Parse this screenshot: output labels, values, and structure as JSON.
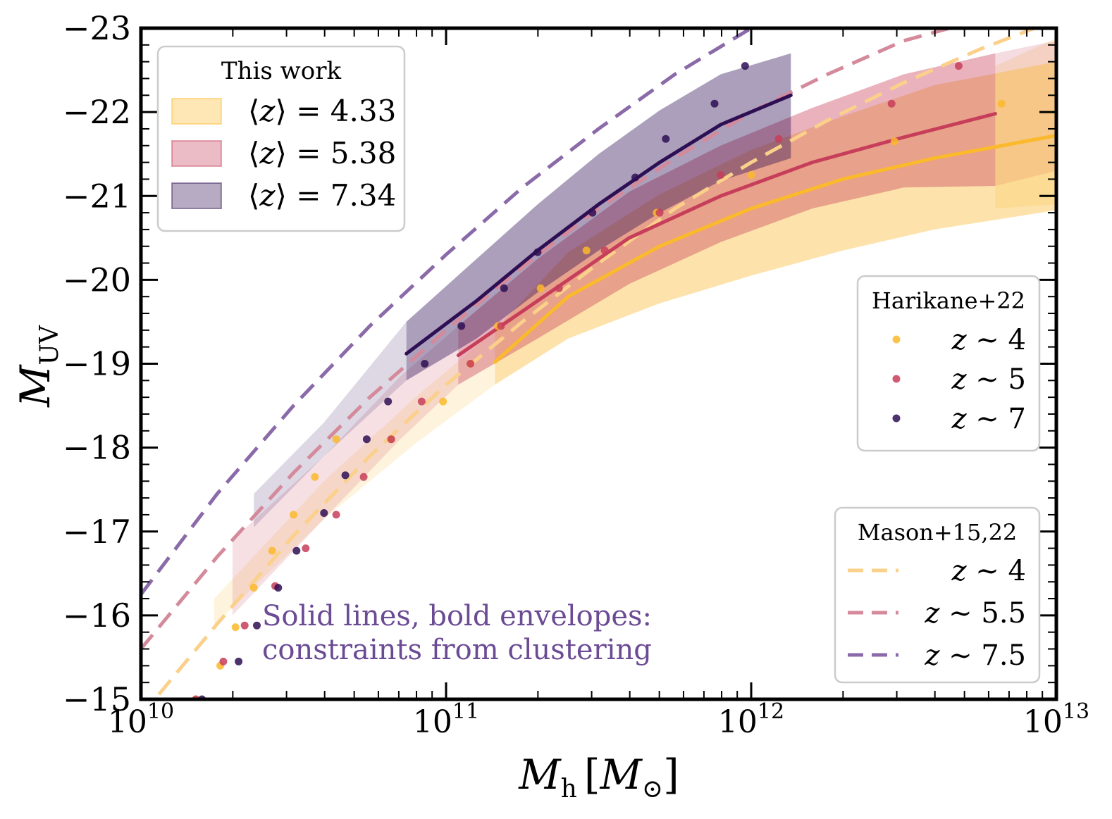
{
  "chart_data": {
    "type": "line",
    "xscale": "log",
    "xlim": [
      10,
      13
    ],
    "ylim": [
      -15,
      -23
    ],
    "xlabel_main": "M",
    "xlabel_sub": "h",
    "xlabel_unit_main": "M",
    "xlabel_unit_sub": "⊙",
    "ylabel_main": "M",
    "ylabel_sub": "UV",
    "x_ticks": [
      {
        "exp": 10,
        "base": "10",
        "sup": "10"
      },
      {
        "exp": 11,
        "base": "10",
        "sup": "11"
      },
      {
        "exp": 12,
        "base": "10",
        "sup": "12"
      },
      {
        "exp": 13,
        "base": "10",
        "sup": "13"
      }
    ],
    "y_ticks": [
      {
        "value": -15,
        "label": "−15"
      },
      {
        "value": -16,
        "label": "−16"
      },
      {
        "value": -17,
        "label": "−17"
      },
      {
        "value": -18,
        "label": "−18"
      },
      {
        "value": -19,
        "label": "−19"
      },
      {
        "value": -20,
        "label": "−20"
      },
      {
        "value": -21,
        "label": "−21"
      },
      {
        "value": -22,
        "label": "−22"
      },
      {
        "value": -23,
        "label": "−23"
      }
    ],
    "colors": {
      "z4": "#fbb92c",
      "z5": "#c73e5a",
      "z7": "#2e0f54"
    },
    "this_work": [
      {
        "key": "z4",
        "color": "#fbb92c",
        "label_z": "z",
        "label_value": "= 4.33",
        "line": [
          [
            11.16,
            -19.02
          ],
          [
            11.4,
            -19.8
          ],
          [
            11.7,
            -20.4
          ],
          [
            12.0,
            -20.85
          ],
          [
            12.3,
            -21.2
          ],
          [
            12.6,
            -21.45
          ],
          [
            13.0,
            -21.72
          ]
        ],
        "bold_lower": [
          [
            11.16,
            -18.75
          ],
          [
            11.4,
            -19.3
          ],
          [
            11.7,
            -19.72
          ],
          [
            12.0,
            -20.05
          ],
          [
            12.3,
            -20.35
          ],
          [
            12.6,
            -20.6
          ],
          [
            13.0,
            -20.83
          ]
        ],
        "bold_upper": [
          [
            11.16,
            -19.4
          ],
          [
            11.4,
            -20.33
          ],
          [
            11.7,
            -21.02
          ],
          [
            12.0,
            -21.55
          ],
          [
            12.3,
            -21.95
          ],
          [
            12.6,
            -22.32
          ],
          [
            13.0,
            -22.6
          ]
        ],
        "faint_lower": [
          [
            10.24,
            -15.88
          ],
          [
            10.6,
            -17.15
          ],
          [
            10.9,
            -18.05
          ],
          [
            11.16,
            -18.75
          ]
        ],
        "faint_upper": [
          [
            10.24,
            -16.2
          ],
          [
            10.6,
            -17.6
          ],
          [
            10.9,
            -18.6
          ],
          [
            11.16,
            -19.4
          ]
        ],
        "wide_lower": [
          [
            12.8,
            -20.85
          ],
          [
            13.0,
            -20.9
          ]
        ],
        "wide_upper": [
          [
            12.8,
            -22.55
          ],
          [
            13.0,
            -22.88
          ]
        ]
      },
      {
        "key": "z5",
        "color": "#c73e5a",
        "label_z": "z",
        "label_value": "= 5.38",
        "line": [
          [
            11.04,
            -19.1
          ],
          [
            11.3,
            -19.75
          ],
          [
            11.6,
            -20.5
          ],
          [
            11.9,
            -21.0
          ],
          [
            12.2,
            -21.4
          ],
          [
            12.5,
            -21.7
          ],
          [
            12.8,
            -21.98
          ]
        ],
        "bold_lower": [
          [
            11.04,
            -18.75
          ],
          [
            11.3,
            -19.3
          ],
          [
            11.6,
            -19.95
          ],
          [
            11.9,
            -20.45
          ],
          [
            12.2,
            -20.85
          ],
          [
            12.5,
            -21.1
          ],
          [
            12.8,
            -21.12
          ]
        ],
        "bold_upper": [
          [
            11.04,
            -19.45
          ],
          [
            11.3,
            -20.25
          ],
          [
            11.6,
            -21.05
          ],
          [
            11.9,
            -21.6
          ],
          [
            12.2,
            -22.05
          ],
          [
            12.5,
            -22.45
          ],
          [
            12.8,
            -22.7
          ]
        ],
        "faint_lower": [
          [
            10.3,
            -16.0
          ],
          [
            10.6,
            -17.15
          ],
          [
            10.85,
            -18.1
          ],
          [
            11.04,
            -18.75
          ]
        ],
        "faint_upper": [
          [
            10.3,
            -16.9
          ],
          [
            10.6,
            -17.9
          ],
          [
            10.85,
            -18.85
          ],
          [
            11.04,
            -19.45
          ]
        ],
        "wide_lower": [
          [
            12.8,
            -21.12
          ],
          [
            13.0,
            -21.3
          ]
        ],
        "wide_upper": [
          [
            12.8,
            -22.7
          ],
          [
            13.0,
            -22.85
          ]
        ]
      },
      {
        "key": "z7",
        "color": "#2e0f54",
        "label_z": "z",
        "label_value": "= 7.34",
        "line": [
          [
            10.87,
            -19.12
          ],
          [
            11.1,
            -19.75
          ],
          [
            11.3,
            -20.35
          ],
          [
            11.5,
            -20.9
          ],
          [
            11.7,
            -21.4
          ],
          [
            11.9,
            -21.85
          ],
          [
            12.13,
            -22.2
          ]
        ],
        "bold_lower": [
          [
            10.87,
            -18.8
          ],
          [
            11.1,
            -19.3
          ],
          [
            11.3,
            -19.85
          ],
          [
            11.5,
            -20.35
          ],
          [
            11.7,
            -20.8
          ],
          [
            11.9,
            -21.18
          ],
          [
            12.13,
            -21.45
          ]
        ],
        "bold_upper": [
          [
            10.87,
            -19.5
          ],
          [
            11.1,
            -20.25
          ],
          [
            11.3,
            -20.9
          ],
          [
            11.5,
            -21.5
          ],
          [
            11.7,
            -22.02
          ],
          [
            11.9,
            -22.45
          ],
          [
            12.13,
            -22.7
          ]
        ],
        "faint_lower": [
          [
            10.37,
            -17.05
          ],
          [
            10.6,
            -17.9
          ],
          [
            10.87,
            -18.8
          ]
        ],
        "faint_upper": [
          [
            10.37,
            -17.45
          ],
          [
            10.6,
            -18.3
          ],
          [
            10.87,
            -19.5
          ]
        ],
        "wide_lower": [],
        "wide_upper": []
      }
    ],
    "mason": [
      {
        "key": "z4",
        "color": "#fbd08a",
        "label_z": "z",
        "label_value": "∼ 4",
        "points": [
          [
            10.0,
            -14.8
          ],
          [
            10.25,
            -15.9
          ],
          [
            10.5,
            -16.95
          ],
          [
            10.75,
            -17.9
          ],
          [
            11.0,
            -18.75
          ],
          [
            11.25,
            -19.5
          ],
          [
            11.5,
            -20.2
          ],
          [
            11.75,
            -20.85
          ],
          [
            12.0,
            -21.4
          ],
          [
            12.25,
            -21.9
          ],
          [
            12.5,
            -22.35
          ],
          [
            12.75,
            -22.75
          ],
          [
            13.0,
            -23.1
          ]
        ]
      },
      {
        "key": "z5",
        "color": "#d48a9b",
        "label_z": "z",
        "label_value": "∼ 5.5",
        "points": [
          [
            10.0,
            -15.6
          ],
          [
            10.25,
            -16.7
          ],
          [
            10.5,
            -17.7
          ],
          [
            10.75,
            -18.6
          ],
          [
            11.0,
            -19.4
          ],
          [
            11.25,
            -20.15
          ],
          [
            11.5,
            -20.85
          ],
          [
            11.75,
            -21.45
          ],
          [
            12.0,
            -22.0
          ],
          [
            12.25,
            -22.45
          ],
          [
            12.5,
            -22.85
          ],
          [
            12.75,
            -23.1
          ]
        ]
      },
      {
        "key": "z7",
        "color": "#8a6aa8",
        "label_z": "z",
        "label_value": "∼ 7.5",
        "points": [
          [
            10.0,
            -16.25
          ],
          [
            10.25,
            -17.45
          ],
          [
            10.5,
            -18.5
          ],
          [
            10.75,
            -19.45
          ],
          [
            11.0,
            -20.3
          ],
          [
            11.25,
            -21.1
          ],
          [
            11.5,
            -21.8
          ],
          [
            11.75,
            -22.45
          ],
          [
            12.0,
            -23.0
          ],
          [
            12.1,
            -23.2
          ]
        ]
      }
    ],
    "harikane": [
      {
        "key": "z4",
        "color": "#fbb92c",
        "label_z": "z",
        "label_value": "∼ 4",
        "points": [
          [
            10.18,
            -15.0
          ],
          [
            10.26,
            -15.4
          ],
          [
            10.31,
            -15.86
          ],
          [
            10.37,
            -16.33
          ],
          [
            10.43,
            -16.77
          ],
          [
            10.5,
            -17.2
          ],
          [
            10.57,
            -17.65
          ],
          [
            10.64,
            -18.1
          ],
          [
            10.82,
            -18.1
          ],
          [
            10.99,
            -18.55
          ],
          [
            11.08,
            -19.0
          ],
          [
            11.17,
            -19.45
          ],
          [
            11.31,
            -19.9
          ],
          [
            11.46,
            -20.35
          ],
          [
            11.69,
            -20.8
          ],
          [
            12.0,
            -21.25
          ],
          [
            12.47,
            -21.65
          ],
          [
            12.82,
            -22.1
          ]
        ]
      },
      {
        "key": "z5",
        "color": "#c73e5a",
        "label_z": "z",
        "label_value": "∼ 5",
        "points": [
          [
            10.18,
            -15.0
          ],
          [
            10.27,
            -15.45
          ],
          [
            10.34,
            -15.88
          ],
          [
            10.44,
            -16.35
          ],
          [
            10.54,
            -16.8
          ],
          [
            10.64,
            -17.2
          ],
          [
            10.73,
            -17.65
          ],
          [
            10.82,
            -18.1
          ],
          [
            10.92,
            -18.55
          ],
          [
            11.08,
            -19.0
          ],
          [
            11.18,
            -19.45
          ],
          [
            11.37,
            -19.9
          ],
          [
            11.52,
            -20.35
          ],
          [
            11.7,
            -20.8
          ],
          [
            11.9,
            -21.25
          ],
          [
            12.09,
            -21.68
          ],
          [
            12.46,
            -22.1
          ],
          [
            12.68,
            -22.55
          ]
        ]
      },
      {
        "key": "z7",
        "color": "#2e0f54",
        "label_z": "z",
        "label_value": "∼ 7",
        "points": [
          [
            10.2,
            -15.0
          ],
          [
            10.32,
            -15.45
          ],
          [
            10.38,
            -15.88
          ],
          [
            10.45,
            -16.33
          ],
          [
            10.51,
            -16.77
          ],
          [
            10.6,
            -17.22
          ],
          [
            10.67,
            -17.67
          ],
          [
            10.74,
            -18.1
          ],
          [
            10.81,
            -18.55
          ],
          [
            10.93,
            -19.0
          ],
          [
            11.05,
            -19.45
          ],
          [
            11.19,
            -19.9
          ],
          [
            11.3,
            -20.33
          ],
          [
            11.48,
            -20.8
          ],
          [
            11.62,
            -21.22
          ],
          [
            11.72,
            -21.68
          ],
          [
            11.88,
            -22.1
          ],
          [
            11.98,
            -22.55
          ]
        ]
      }
    ],
    "legend_this_work_title": "This work",
    "legend_harikane_title": "Harikane+22",
    "legend_mason_title": "Mason+15,22",
    "annotation_line1": "Solid lines, bold envelopes:",
    "annotation_line2": "constraints from clustering",
    "annotation_color": "#6b4b94"
  }
}
